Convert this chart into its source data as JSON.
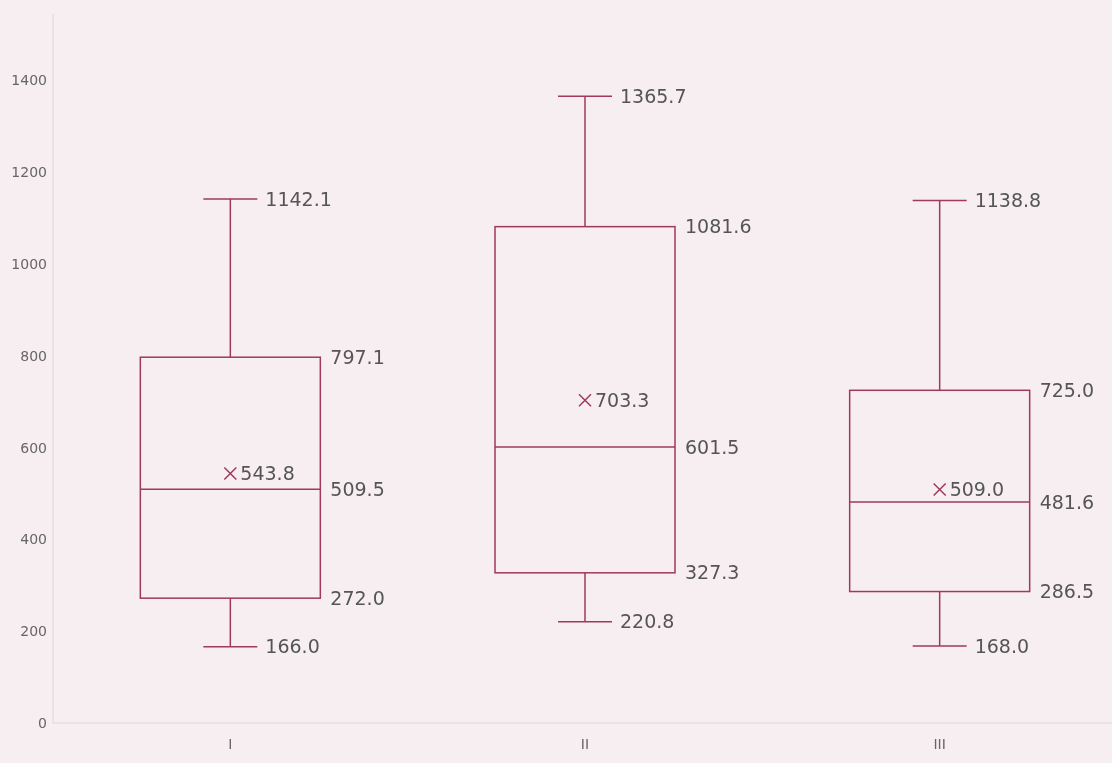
{
  "chart_data": {
    "type": "box",
    "categories": [
      "I",
      "II",
      "III"
    ],
    "boxes": [
      {
        "low": 166.0,
        "q1": 272.0,
        "median": 509.5,
        "q3": 797.1,
        "high": 1142.1,
        "mean": 543.8
      },
      {
        "low": 220.8,
        "q1": 327.3,
        "median": 601.5,
        "q3": 1081.6,
        "high": 1365.7,
        "mean": 703.3
      },
      {
        "low": 168.0,
        "q1": 286.5,
        "median": 481.6,
        "q3": 725.0,
        "high": 1138.8,
        "mean": 509.0
      }
    ],
    "annotations": [
      "1142.1",
      "797.1",
      "543.8",
      "509.5",
      "272.0",
      "166.0",
      "1365.7",
      "1081.6",
      "703.3",
      "601.5",
      "327.3",
      "220.8",
      "1138.8",
      "725.0",
      "509.0",
      "481.6",
      "286.5",
      "168.0"
    ],
    "color": "#a0395e",
    "ylim": [
      0,
      1545
    ],
    "yticks": [
      0,
      200,
      400,
      600,
      800,
      1000,
      1200,
      1400
    ]
  }
}
